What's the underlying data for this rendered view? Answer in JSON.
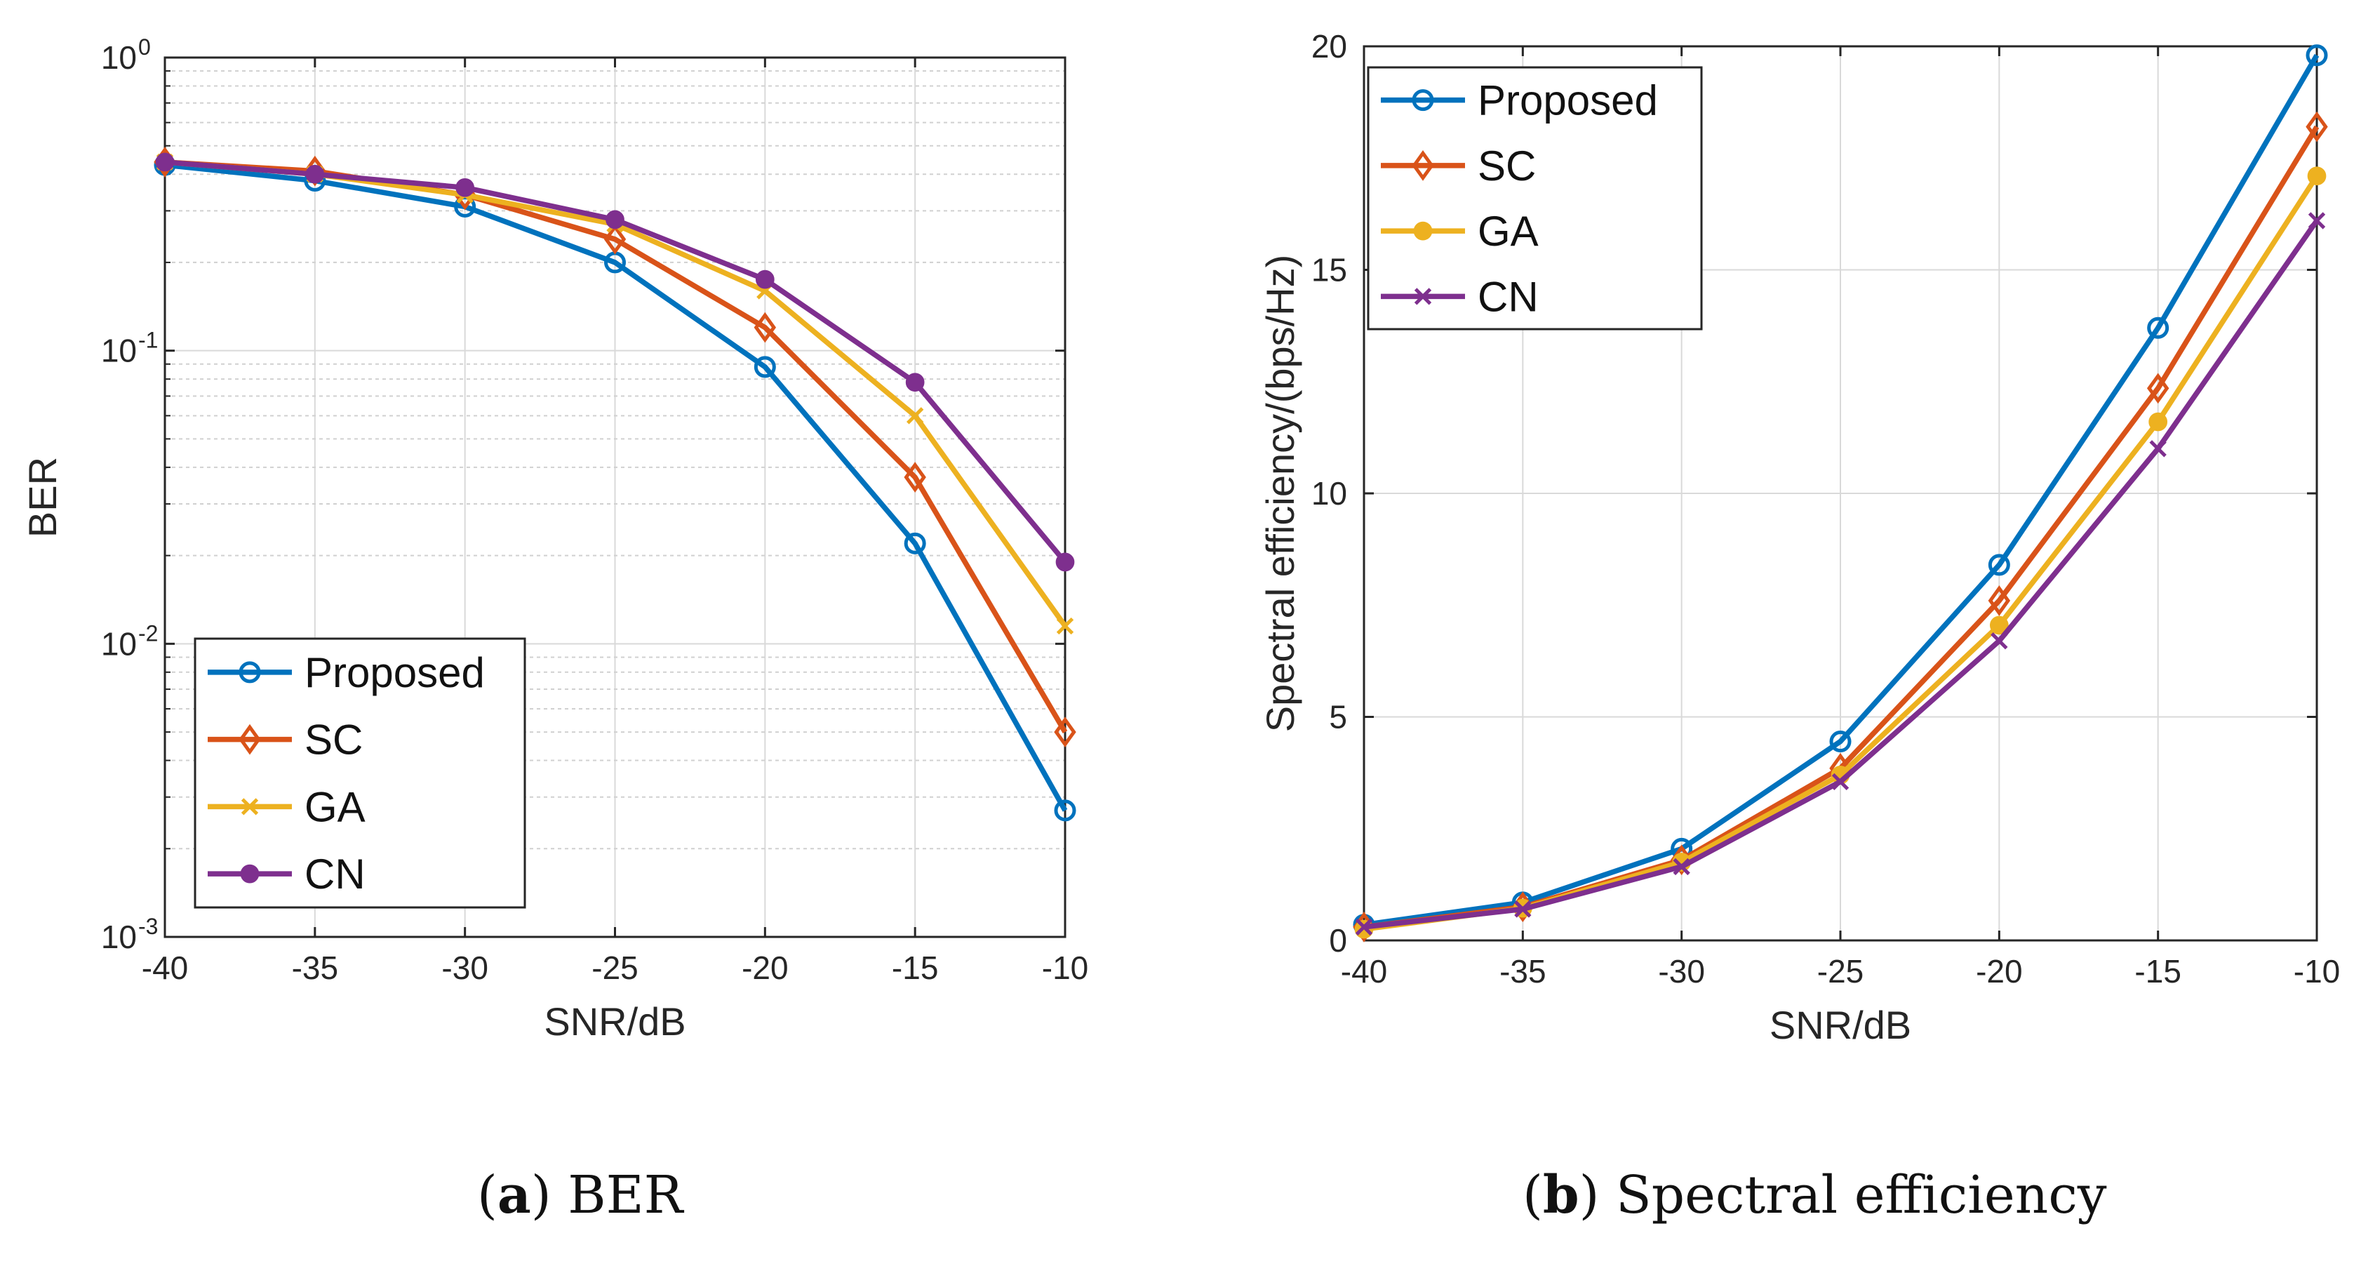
{
  "chart_data": [
    {
      "id": "a",
      "type": "line",
      "yscale": "log",
      "xlabel": "SNR/dB",
      "ylabel": "BER",
      "x": [
        -40,
        -35,
        -30,
        -25,
        -20,
        -15,
        -10
      ],
      "xlim": [
        -40,
        -10
      ],
      "ylim": [
        0.001,
        1
      ],
      "xticks": [
        "-40",
        "-35",
        "-30",
        "-25",
        "-20",
        "-15",
        "-10"
      ],
      "yticks": [
        {
          "base": "10",
          "exp": "0"
        },
        {
          "base": "10",
          "exp": "-1"
        },
        {
          "base": "10",
          "exp": "-2"
        },
        {
          "base": "10",
          "exp": "-3"
        }
      ],
      "grid": true,
      "legend_position": "bottom-left",
      "series": [
        {
          "name": "Proposed",
          "color": "#0072BD",
          "marker": "circle",
          "values": [
            0.43,
            0.38,
            0.31,
            0.2,
            0.088,
            0.022,
            0.0027
          ]
        },
        {
          "name": "SC",
          "color": "#D95319",
          "marker": "diamond",
          "values": [
            0.44,
            0.41,
            0.34,
            0.24,
            0.12,
            0.037,
            0.005
          ]
        },
        {
          "name": "GA",
          "color": "#EDB120",
          "marker": "x",
          "values": [
            0.44,
            0.4,
            0.34,
            0.27,
            0.16,
            0.06,
            0.0115
          ]
        },
        {
          "name": "CN",
          "color": "#7E2F8E",
          "marker": "dot",
          "values": [
            0.44,
            0.4,
            0.36,
            0.28,
            0.175,
            0.078,
            0.019
          ]
        }
      ]
    },
    {
      "id": "b",
      "type": "line",
      "yscale": "linear",
      "xlabel": "SNR/dB",
      "ylabel": "Spectral efficiency/(bps/Hz)",
      "x": [
        -40,
        -35,
        -30,
        -25,
        -20,
        -15,
        -10
      ],
      "xlim": [
        -40,
        -10
      ],
      "ylim": [
        0,
        20
      ],
      "xticks": [
        "-40",
        "-35",
        "-30",
        "-25",
        "-20",
        "-15",
        "-10"
      ],
      "yticks": [
        "0",
        "5",
        "10",
        "15",
        "20"
      ],
      "grid": true,
      "legend_position": "top-left",
      "series": [
        {
          "name": "Proposed",
          "color": "#0072BD",
          "marker": "circle",
          "values": [
            0.35,
            0.85,
            2.05,
            4.45,
            8.4,
            13.7,
            19.8
          ]
        },
        {
          "name": "SC",
          "color": "#D95319",
          "marker": "diamond",
          "values": [
            0.3,
            0.75,
            1.8,
            3.85,
            7.6,
            12.35,
            18.2
          ]
        },
        {
          "name": "GA",
          "color": "#EDB120",
          "marker": "dot",
          "values": [
            0.25,
            0.72,
            1.75,
            3.7,
            7.05,
            11.6,
            17.1
          ]
        },
        {
          "name": "CN",
          "color": "#7E2F8E",
          "marker": "x",
          "values": [
            0.3,
            0.7,
            1.65,
            3.55,
            6.7,
            11.0,
            16.1
          ]
        }
      ]
    }
  ],
  "captions": {
    "a": {
      "letter": "a",
      "text": " BER"
    },
    "b": {
      "letter": "b",
      "text": " Spectral efficiency"
    }
  }
}
